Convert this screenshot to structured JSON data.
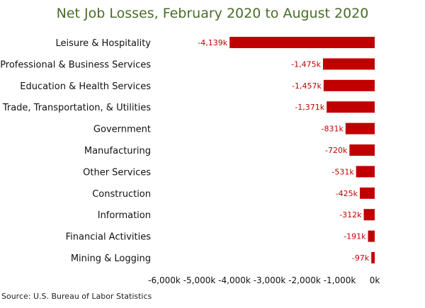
{
  "title": "Net Job Losses, February 2020 to August 2020",
  "source": "Source: U.S. Bureau of Labor Statistics",
  "colors": {
    "bar": "#c00000",
    "bar_label": "#c00000",
    "title": "#4a6b2a",
    "text": "#111111"
  },
  "chart_data": {
    "type": "bar",
    "orientation": "horizontal",
    "title": "Net Job Losses, February 2020 to August 2020",
    "categories": [
      "Leisure & Hospitality",
      "Professional & Business Services",
      "Education & Health Services",
      "Trade, Transportation, & Utilities",
      "Government",
      "Manufacturing",
      "Other Services",
      "Construction",
      "Information",
      "Financial Activities",
      "Mining & Logging"
    ],
    "values": [
      -4139,
      -1475,
      -1457,
      -1371,
      -831,
      -720,
      -531,
      -425,
      -312,
      -191,
      -97
    ],
    "value_labels": [
      "-4,139k",
      "-1,475k",
      "-1,457k",
      "-1,371k",
      "-831k",
      "-720k",
      "-531k",
      "-425k",
      "-312k",
      "-191k",
      "-97k"
    ],
    "xlim": [
      -6000,
      0
    ],
    "xticks": [
      -6000,
      -5000,
      -4000,
      -3000,
      -2000,
      -1000,
      0
    ],
    "xtick_labels": [
      "-6,000k",
      "-5,000k",
      "-4,000k",
      "-3,000k",
      "-2,000k",
      "-1,000k",
      "0k"
    ],
    "grid": false,
    "legend": "none"
  }
}
